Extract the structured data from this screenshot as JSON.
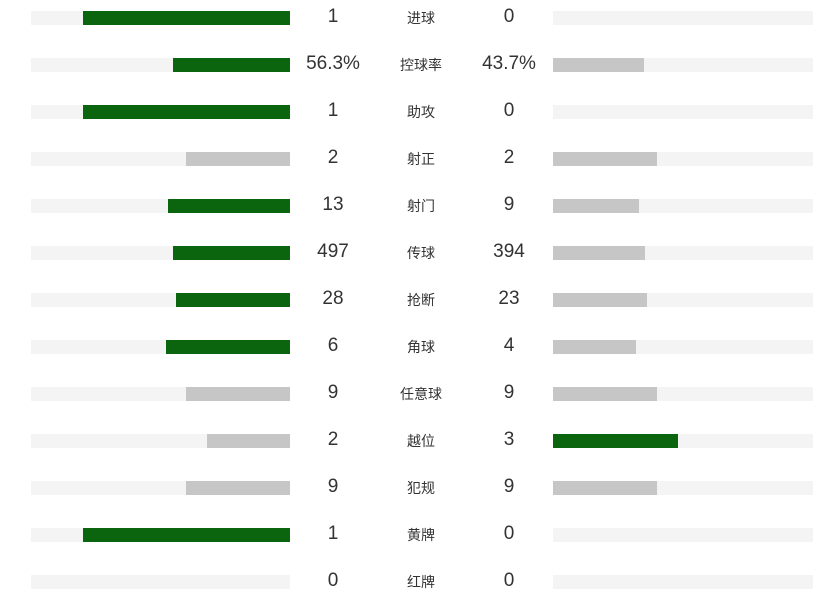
{
  "colors": {
    "leading": "#0b640e",
    "trailing": "#c6c6c6",
    "track": "#f4f4f4"
  },
  "stats": [
    {
      "label": "进球",
      "home": "1",
      "away": "0",
      "home_share": 0.8,
      "away_share": 0.0,
      "home_leads": true,
      "away_leads": false
    },
    {
      "label": "控球率",
      "home": "56.3%",
      "away": "43.7%",
      "home_share": 0.45,
      "away_share": 0.35,
      "home_leads": true,
      "away_leads": false
    },
    {
      "label": "助攻",
      "home": "1",
      "away": "0",
      "home_share": 0.8,
      "away_share": 0.0,
      "home_leads": true,
      "away_leads": false
    },
    {
      "label": "射正",
      "home": "2",
      "away": "2",
      "home_share": 0.4,
      "away_share": 0.4,
      "home_leads": false,
      "away_leads": false
    },
    {
      "label": "射门",
      "home": "13",
      "away": "9",
      "home_share": 0.47,
      "away_share": 0.33,
      "home_leads": true,
      "away_leads": false
    },
    {
      "label": "传球",
      "home": "497",
      "away": "394",
      "home_share": 0.45,
      "away_share": 0.355,
      "home_leads": true,
      "away_leads": false
    },
    {
      "label": "抢断",
      "home": "28",
      "away": "23",
      "home_share": 0.44,
      "away_share": 0.36,
      "home_leads": true,
      "away_leads": false
    },
    {
      "label": "角球",
      "home": "6",
      "away": "4",
      "home_share": 0.48,
      "away_share": 0.32,
      "home_leads": true,
      "away_leads": false
    },
    {
      "label": "任意球",
      "home": "9",
      "away": "9",
      "home_share": 0.4,
      "away_share": 0.4,
      "home_leads": false,
      "away_leads": false
    },
    {
      "label": "越位",
      "home": "2",
      "away": "3",
      "home_share": 0.32,
      "away_share": 0.48,
      "home_leads": false,
      "away_leads": true
    },
    {
      "label": "犯规",
      "home": "9",
      "away": "9",
      "home_share": 0.4,
      "away_share": 0.4,
      "home_leads": false,
      "away_leads": false
    },
    {
      "label": "黄牌",
      "home": "1",
      "away": "0",
      "home_share": 0.8,
      "away_share": 0.0,
      "home_leads": true,
      "away_leads": false
    },
    {
      "label": "红牌",
      "home": "0",
      "away": "0",
      "home_share": 0.0,
      "away_share": 0.0,
      "home_leads": false,
      "away_leads": false
    }
  ]
}
